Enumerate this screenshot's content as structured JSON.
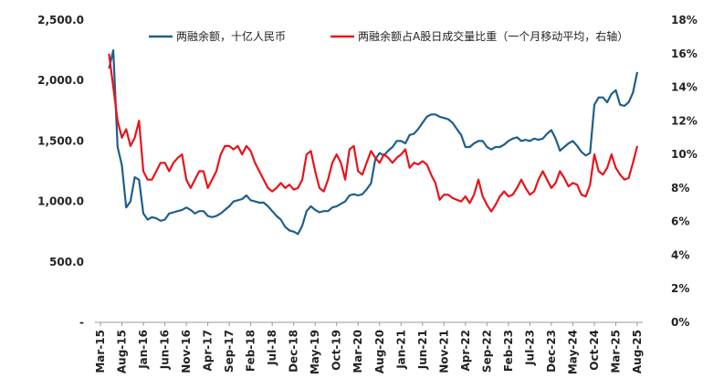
{
  "chart_data": {
    "type": "line",
    "categories": [
      "Mar-15",
      null,
      null,
      null,
      null,
      "Aug-15",
      null,
      null,
      null,
      null,
      "Jan-16",
      null,
      null,
      null,
      null,
      "Jun-16",
      null,
      null,
      null,
      null,
      "Nov-16",
      null,
      null,
      null,
      null,
      "Apr-17",
      null,
      null,
      null,
      null,
      "Sep-17",
      null,
      null,
      null,
      null,
      "Feb-18",
      null,
      null,
      null,
      null,
      "Jul-18",
      null,
      null,
      null,
      null,
      "Dec-18",
      null,
      null,
      null,
      null,
      "May-19",
      null,
      null,
      null,
      null,
      "Oct-19",
      null,
      null,
      null,
      null,
      "Mar-20",
      null,
      null,
      null,
      null,
      "Aug-20",
      null,
      null,
      null,
      null,
      "Jan-21",
      null,
      null,
      null,
      null,
      "Jun-21",
      null,
      null,
      null,
      null,
      "Nov-21",
      null,
      null,
      null,
      null,
      "Apr-22",
      null,
      null,
      null,
      null,
      "Sep-22",
      null,
      null,
      null,
      null,
      "Feb-23",
      null,
      null,
      null,
      null,
      "Jul-23",
      null,
      null,
      null,
      null,
      "Dec-23",
      null,
      null,
      null,
      null,
      "May-24",
      null,
      null,
      null,
      null,
      "Oct-24",
      null,
      null,
      null,
      null,
      "Mar-25",
      null,
      null,
      null,
      null,
      "Aug-25"
    ],
    "series": [
      {
        "name": "两融余额，十亿人民币",
        "color": "#1f5f8b",
        "values": [
          null,
          null,
          2100,
          2250,
          1450,
          1300,
          950,
          1000,
          1200,
          1180,
          900,
          850,
          870,
          860,
          840,
          850,
          900,
          910,
          920,
          930,
          950,
          930,
          900,
          920,
          920,
          880,
          870,
          880,
          900,
          930,
          960,
          1000,
          1010,
          1020,
          1050,
          1010,
          1000,
          990,
          990,
          960,
          920,
          880,
          850,
          790,
          760,
          750,
          730,
          800,
          920,
          960,
          930,
          910,
          920,
          920,
          950,
          960,
          980,
          1000,
          1050,
          1060,
          1050,
          1060,
          1100,
          1150,
          1350,
          1400,
          1380,
          1420,
          1450,
          1500,
          1500,
          1480,
          1550,
          1560,
          1600,
          1650,
          1700,
          1720,
          1720,
          1700,
          1690,
          1680,
          1650,
          1600,
          1550,
          1450,
          1450,
          1480,
          1500,
          1500,
          1450,
          1430,
          1450,
          1450,
          1470,
          1500,
          1520,
          1530,
          1500,
          1510,
          1500,
          1520,
          1510,
          1520,
          1560,
          1590,
          1520,
          1420,
          1450,
          1480,
          1500,
          1460,
          1410,
          1380,
          1400,
          1800,
          1860,
          1860,
          1820,
          1890,
          1920,
          1800,
          1790,
          1820,
          1900,
          2070
        ]
      },
      {
        "name": "两融余额占A股日成交量比重（一个月移动平均，右轴）",
        "color": "#e8141b",
        "axis": "y2",
        "values": [
          null,
          null,
          16,
          14,
          12,
          11,
          11.5,
          10.5,
          11,
          12,
          9,
          8.5,
          8.5,
          9,
          9.5,
          9.5,
          9,
          9.5,
          9.8,
          10,
          8.5,
          8,
          8.5,
          9,
          9,
          8,
          8.5,
          9,
          10,
          10.5,
          10.5,
          10.3,
          10.5,
          10,
          10.5,
          10.2,
          9.5,
          9,
          8.5,
          8,
          7.8,
          8,
          8.3,
          8,
          8.2,
          7.9,
          8,
          8.5,
          10,
          10.2,
          9,
          8,
          7.8,
          8.5,
          9.5,
          10,
          9.5,
          8.5,
          10.3,
          10.5,
          9,
          8.8,
          9.5,
          10.2,
          9.8,
          9.5,
          10,
          9.8,
          9.5,
          9.8,
          10,
          10.3,
          9.2,
          9.5,
          9.4,
          9.6,
          9.4,
          8.8,
          8.3,
          7.3,
          7.6,
          7.6,
          7.4,
          7.3,
          7.2,
          7.5,
          7.1,
          7.6,
          8.5,
          7.5,
          7,
          6.6,
          7,
          7.5,
          7.8,
          7.5,
          7.6,
          8,
          8.5,
          8,
          7.6,
          7.8,
          8.5,
          9,
          8.5,
          8,
          8.3,
          9,
          8.6,
          8.1,
          8.3,
          8.2,
          7.6,
          7.5,
          8.2,
          10,
          9,
          8.8,
          9.2,
          10,
          9.2,
          8.8,
          8.5,
          8.6,
          9.5,
          10.5
        ]
      }
    ],
    "ylim": [
      0,
      2500
    ],
    "yticks": [
      {
        "value": 0,
        "label": "-"
      },
      {
        "value": 500,
        "label": "500.0"
      },
      {
        "value": 1000,
        "label": "1,000.0"
      },
      {
        "value": 1500,
        "label": "1,500.0"
      },
      {
        "value": 2000,
        "label": "2,000.0"
      },
      {
        "value": 2500,
        "label": "2,500.0"
      }
    ],
    "y2lim": [
      0,
      18
    ],
    "y2ticks": [
      {
        "value": 0,
        "label": "0%"
      },
      {
        "value": 2,
        "label": "2%"
      },
      {
        "value": 4,
        "label": "4%"
      },
      {
        "value": 6,
        "label": "6%"
      },
      {
        "value": 8,
        "label": "8%"
      },
      {
        "value": 10,
        "label": "10%"
      },
      {
        "value": 12,
        "label": "12%"
      },
      {
        "value": 14,
        "label": "14%"
      },
      {
        "value": 16,
        "label": "16%"
      },
      {
        "value": 18,
        "label": "18%"
      }
    ],
    "grid": false
  }
}
